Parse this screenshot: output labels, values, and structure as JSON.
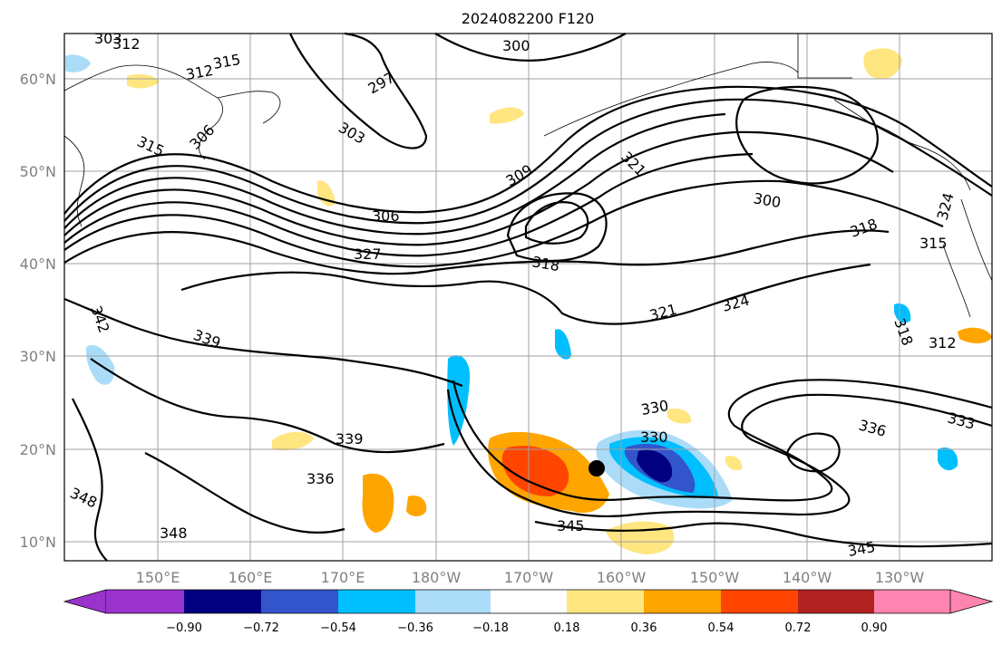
{
  "title": "2024082200 F120",
  "lat_labels": [
    "10°N",
    "20°N",
    "30°N",
    "40°N",
    "50°N",
    "60°N"
  ],
  "lon_labels": [
    "150°E",
    "160°E",
    "170°E",
    "180°W",
    "170°W",
    "160°W",
    "150°W",
    "140°W",
    "130°W"
  ],
  "colorbar": {
    "ticks": [
      "−0.90",
      "−0.72",
      "−0.54",
      "−0.36",
      "−0.18",
      "0.18",
      "0.36",
      "0.54",
      "0.72",
      "0.90"
    ],
    "colors": [
      "#9933cc",
      "#000080",
      "#3355cc",
      "#00bfff",
      "#aadcf8",
      "#ffffff",
      "#ffe680",
      "#ffa500",
      "#ff4500",
      "#b22222",
      "#ff85b0"
    ]
  },
  "contour_labels": [
    "303",
    "312",
    "315",
    "312",
    "297",
    "300",
    "303",
    "306",
    "309",
    "315",
    "306",
    "327",
    "321",
    "300",
    "318",
    "318",
    "315",
    "324",
    "321",
    "324",
    "342",
    "339",
    "312",
    "318",
    "330",
    "330",
    "336",
    "333",
    "339",
    "336",
    "348",
    "345",
    "348",
    "345"
  ],
  "storm_marker": {
    "lat": 17.8,
    "lon": -162.4
  }
}
